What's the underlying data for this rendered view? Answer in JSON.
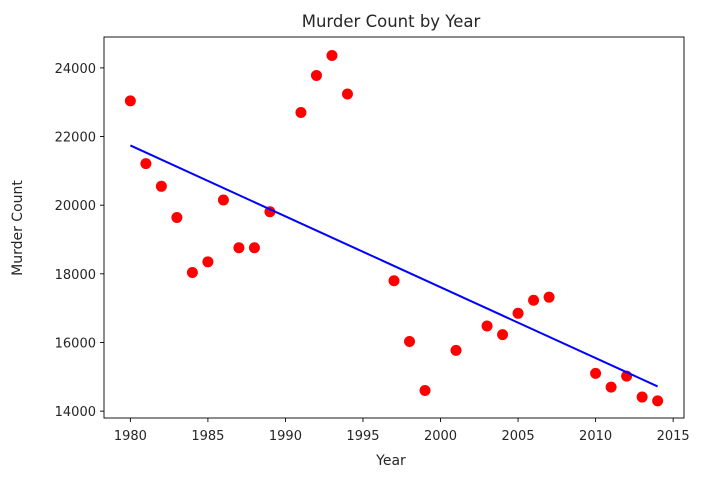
{
  "chart_data": {
    "type": "scatter",
    "title": "Murder Count by Year",
    "xlabel": "Year",
    "ylabel": "Murder Count",
    "xlim": [
      1978.3,
      2015.7
    ],
    "ylim": [
      13800,
      24900
    ],
    "xticks": [
      1980,
      1985,
      1990,
      1995,
      2000,
      2005,
      2010,
      2015
    ],
    "yticks": [
      14000,
      16000,
      18000,
      20000,
      22000,
      24000
    ],
    "xtick_labels": [
      "1980",
      "1985",
      "1990",
      "1995",
      "2000",
      "2005",
      "2010",
      "2015"
    ],
    "ytick_labels": [
      "14000",
      "16000",
      "18000",
      "20000",
      "22000",
      "24000"
    ],
    "grid": false,
    "series": [
      {
        "type": "scatter",
        "color": "#ff0000",
        "x": [
          1980,
          1981,
          1982,
          1983,
          1984,
          1985,
          1986,
          1987,
          1988,
          1989,
          1991,
          1992,
          1993,
          1994,
          1997,
          1998,
          1999,
          2001,
          2003,
          2004,
          2005,
          2006,
          2007,
          2010,
          2011,
          2012,
          2013,
          2014
        ],
        "y": [
          23040,
          21210,
          20550,
          19640,
          18040,
          18350,
          20150,
          18760,
          18760,
          19810,
          22700,
          23780,
          24360,
          23240,
          17800,
          16030,
          14600,
          15770,
          16480,
          16230,
          16850,
          17230,
          17320,
          15100,
          14700,
          15020,
          14410,
          14300
        ]
      },
      {
        "type": "line",
        "color": "#0000ff",
        "x": [
          1980,
          2014
        ],
        "y": [
          21740,
          14720
        ]
      }
    ]
  }
}
